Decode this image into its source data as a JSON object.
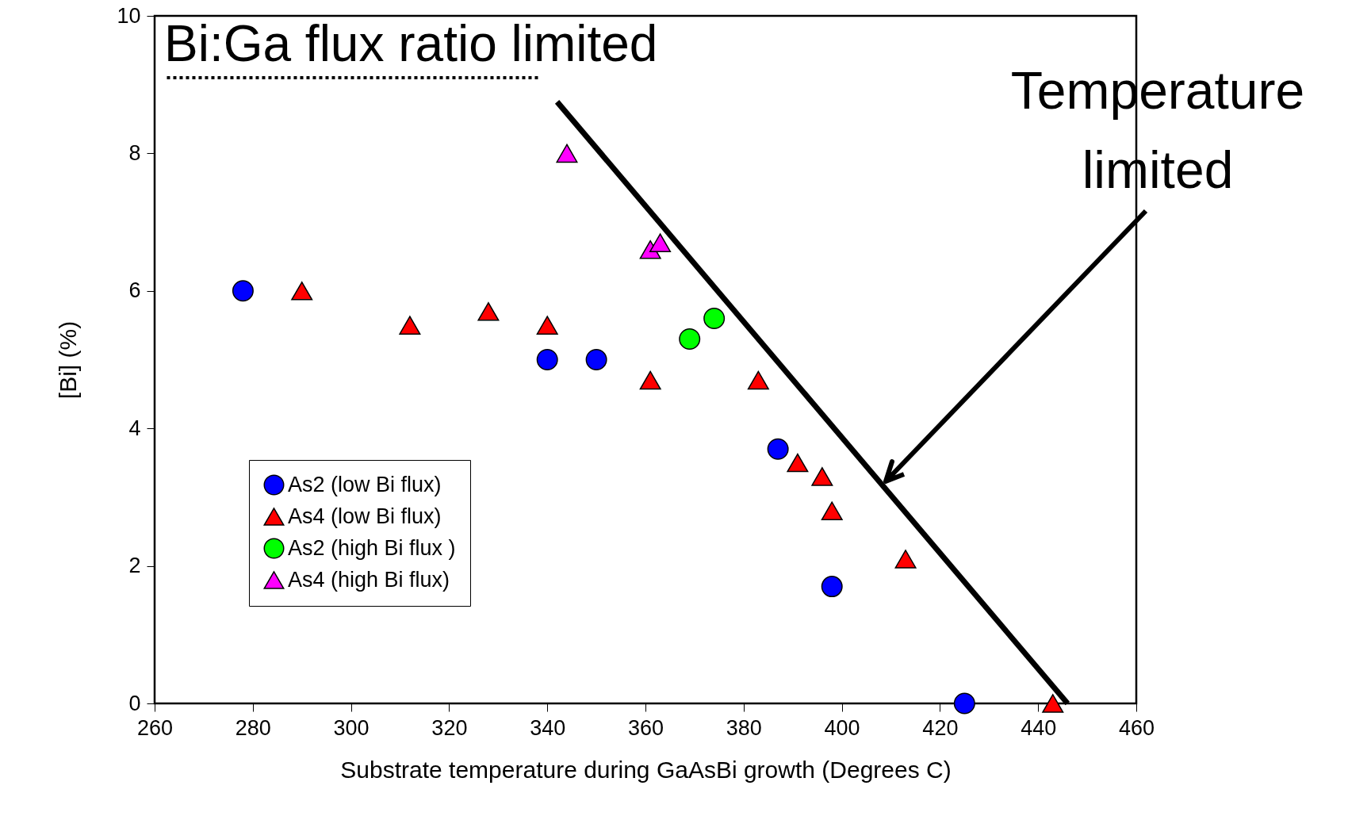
{
  "chart_data": {
    "type": "scatter",
    "xlabel": "Substrate temperature during GaAsBi growth (Degrees C)",
    "ylabel": "[Bi] (%)",
    "xlim": [
      260,
      460
    ],
    "xticks": [
      260,
      280,
      300,
      320,
      340,
      360,
      380,
      400,
      420,
      440,
      460
    ],
    "ylim": [
      0,
      10
    ],
    "yticks": [
      0,
      2,
      4,
      6,
      8,
      10
    ],
    "grid": false,
    "legend": "bottom left",
    "annotations": [
      "Bi:Ga flux ratio limited",
      "Temperature limited"
    ],
    "series": [
      {
        "name": "As2 (low Bi flux)",
        "color": "#0000ff",
        "marker": "circle",
        "x": [
          278,
          340,
          350,
          387,
          398,
          425
        ],
        "values": [
          6.0,
          5.0,
          5.0,
          3.7,
          1.7,
          0.0
        ]
      },
      {
        "name": "As4 (low Bi flux)",
        "color": "#ff0000",
        "marker": "triangle",
        "x": [
          290,
          312,
          328,
          340,
          361,
          383,
          391,
          396,
          398,
          413,
          443
        ],
        "values": [
          6.0,
          5.5,
          5.7,
          5.5,
          4.7,
          4.7,
          3.5,
          3.3,
          2.8,
          2.1,
          0.0
        ]
      },
      {
        "name": "As2 (high Bi flux )",
        "color": "#00ff00",
        "marker": "circle",
        "x": [
          369,
          374
        ],
        "values": [
          5.3,
          5.6
        ]
      },
      {
        "name": "As4 (high Bi flux)",
        "color": "#ff00ff",
        "marker": "triangle",
        "x": [
          344,
          361,
          363
        ],
        "values": [
          8.0,
          6.6,
          6.7
        ]
      },
      {
        "type": "line",
        "color": "#000000",
        "line_style": "solid",
        "x": [
          342,
          446
        ],
        "values": [
          8.75,
          0
        ]
      },
      {
        "type": "line",
        "color": "#000000",
        "line_style": "dotted",
        "x": [
          262.5,
          338.5
        ],
        "values": [
          9.1,
          9.1
        ]
      }
    ]
  }
}
